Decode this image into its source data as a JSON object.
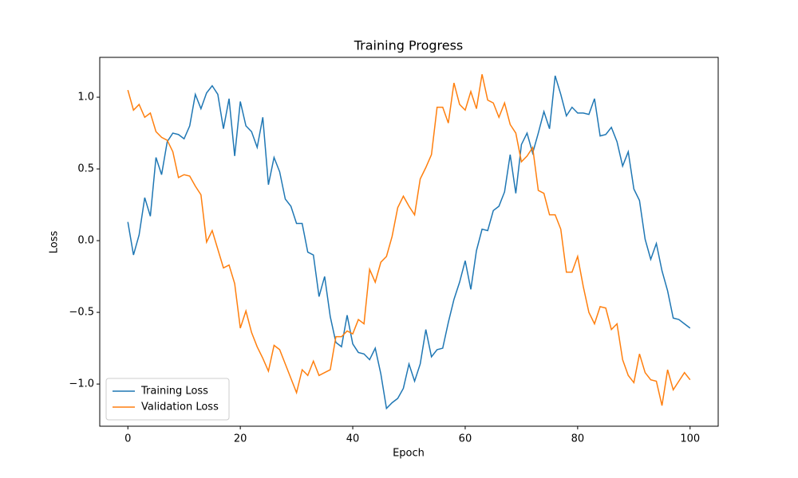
{
  "chart_data": {
    "type": "line",
    "title": "Training Progress",
    "x_label": "Epoch",
    "y_label": "Loss",
    "x": [
      0,
      1,
      2,
      3,
      4,
      5,
      6,
      7,
      8,
      9,
      10,
      11,
      12,
      13,
      14,
      15,
      16,
      17,
      18,
      19,
      20,
      21,
      22,
      23,
      24,
      25,
      26,
      27,
      28,
      29,
      30,
      31,
      32,
      33,
      34,
      35,
      36,
      37,
      38,
      39,
      40,
      41,
      42,
      43,
      44,
      45,
      46,
      47,
      48,
      49,
      50,
      51,
      52,
      53,
      54,
      55,
      56,
      57,
      58,
      59,
      60,
      61,
      62,
      63,
      64,
      65,
      66,
      67,
      68,
      69,
      70,
      71,
      72,
      73,
      74,
      75,
      76,
      77,
      78,
      79,
      80,
      81,
      82,
      83,
      84,
      85,
      86,
      87,
      88,
      89,
      90,
      91,
      92,
      93,
      94,
      95,
      96,
      97,
      98,
      99,
      100
    ],
    "series": [
      {
        "name": "Training Loss",
        "color": "#1f77b4",
        "values": [
          0.13,
          -0.1,
          0.04,
          0.3,
          0.17,
          0.58,
          0.46,
          0.69,
          0.75,
          0.74,
          0.71,
          0.8,
          1.02,
          0.92,
          1.03,
          1.08,
          1.02,
          0.78,
          0.99,
          0.59,
          0.97,
          0.8,
          0.76,
          0.65,
          0.86,
          0.39,
          0.58,
          0.48,
          0.29,
          0.24,
          0.12,
          0.12,
          -0.08,
          -0.1,
          -0.39,
          -0.25,
          -0.53,
          -0.71,
          -0.74,
          -0.52,
          -0.72,
          -0.78,
          -0.79,
          -0.83,
          -0.75,
          -0.93,
          -1.17,
          -1.13,
          -1.1,
          -1.03,
          -0.86,
          -0.98,
          -0.86,
          -0.62,
          -0.81,
          -0.76,
          -0.75,
          -0.57,
          -0.41,
          -0.29,
          -0.14,
          -0.34,
          -0.07,
          0.08,
          0.07,
          0.21,
          0.24,
          0.34,
          0.6,
          0.33,
          0.67,
          0.75,
          0.61,
          0.75,
          0.9,
          0.78,
          1.15,
          1.02,
          0.87,
          0.93,
          0.89,
          0.89,
          0.88,
          0.99,
          0.73,
          0.74,
          0.79,
          0.69,
          0.52,
          0.62,
          0.36,
          0.28,
          0.01,
          -0.13,
          -0.02,
          -0.21,
          -0.35,
          -0.54,
          -0.55,
          -0.58,
          -0.61
        ]
      },
      {
        "name": "Validation Loss",
        "color": "#ff7f0e",
        "values": [
          1.05,
          0.91,
          0.95,
          0.86,
          0.89,
          0.76,
          0.72,
          0.7,
          0.62,
          0.44,
          0.46,
          0.45,
          0.38,
          0.32,
          -0.01,
          0.07,
          -0.06,
          -0.19,
          -0.17,
          -0.3,
          -0.61,
          -0.49,
          -0.64,
          -0.74,
          -0.82,
          -0.91,
          -0.73,
          -0.76,
          -0.86,
          -0.96,
          -1.06,
          -0.9,
          -0.94,
          -0.84,
          -0.94,
          -0.92,
          -0.9,
          -0.67,
          -0.67,
          -0.63,
          -0.65,
          -0.55,
          -0.58,
          -0.2,
          -0.29,
          -0.15,
          -0.11,
          0.03,
          0.23,
          0.31,
          0.24,
          0.18,
          0.43,
          0.51,
          0.6,
          0.93,
          0.93,
          0.82,
          1.1,
          0.95,
          0.91,
          1.04,
          0.92,
          1.16,
          0.98,
          0.96,
          0.86,
          0.96,
          0.81,
          0.75,
          0.55,
          0.59,
          0.65,
          0.35,
          0.33,
          0.18,
          0.18,
          0.08,
          -0.22,
          -0.22,
          -0.11,
          -0.32,
          -0.5,
          -0.58,
          -0.46,
          -0.47,
          -0.62,
          -0.58,
          -0.83,
          -0.94,
          -0.99,
          -0.79,
          -0.92,
          -0.97,
          -0.98,
          -1.15,
          -0.9,
          -1.04,
          -0.98,
          -0.92,
          -0.97
        ]
      }
    ],
    "xlim": [
      -5,
      105
    ],
    "xticks": [
      0,
      20,
      40,
      60,
      80,
      100
    ],
    "ylim": [
      -1.294,
      1.278
    ],
    "yticks": [
      {
        "value": -1,
        "label": "−1.0"
      },
      {
        "value": -0.5,
        "label": "−0.5"
      },
      {
        "value": 0,
        "label": "0.0"
      },
      0.5,
      {
        "value": 1,
        "label": "1.0"
      }
    ],
    "legend": "lower left"
  }
}
